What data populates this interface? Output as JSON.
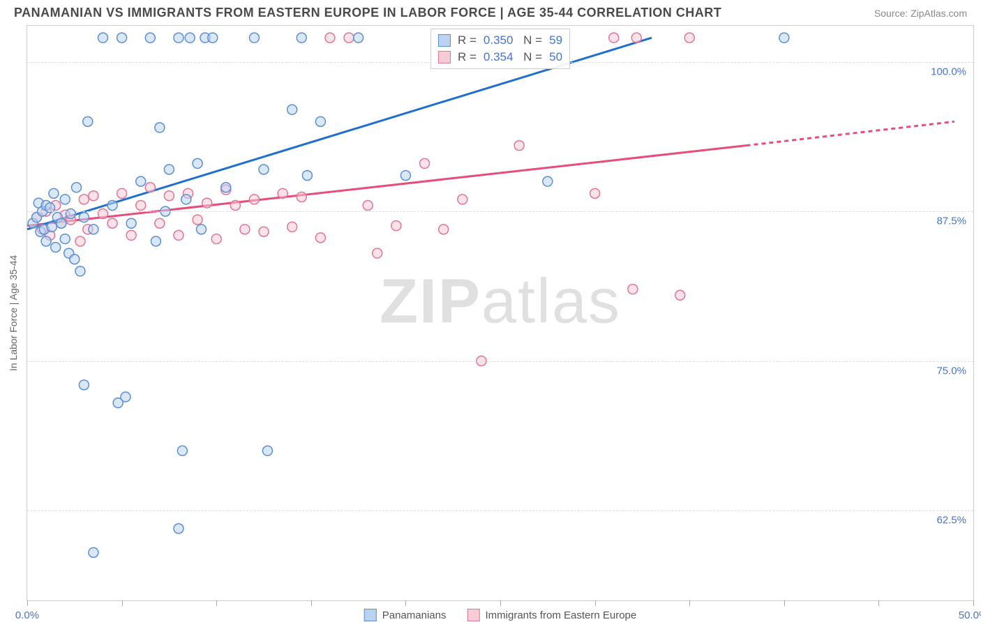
{
  "header": {
    "title": "PANAMANIAN VS IMMIGRANTS FROM EASTERN EUROPE IN LABOR FORCE | AGE 35-44 CORRELATION CHART",
    "source": "Source: ZipAtlas.com"
  },
  "axes": {
    "y_label": "In Labor Force | Age 35-44",
    "xlim": [
      0,
      50
    ],
    "ylim": [
      55,
      103
    ],
    "x_ticks": [
      0,
      5,
      10,
      15,
      20,
      25,
      30,
      35,
      40,
      45,
      50
    ],
    "x_tick_labels": {
      "0": "0.0%",
      "50": "50.0%"
    },
    "y_ticks": [
      62.5,
      75.0,
      87.5,
      100.0
    ],
    "y_tick_labels": [
      "62.5%",
      "75.0%",
      "87.5%",
      "100.0%"
    ],
    "grid_color": "#dddddd",
    "tick_label_color": "#4a74c9"
  },
  "series": {
    "a": {
      "label": "Panamanians",
      "color_fill": "#bcd3f0",
      "color_stroke": "#5a8fd6",
      "line_color": "#1f6fd1",
      "trend": {
        "x1": 0,
        "y1": 86.0,
        "x2": 33,
        "y2": 102.0
      },
      "stats": {
        "R": "0.350",
        "N": "59"
      },
      "points": [
        [
          0.3,
          86.5
        ],
        [
          0.5,
          87.0
        ],
        [
          0.6,
          88.2
        ],
        [
          0.7,
          85.8
        ],
        [
          0.8,
          87.5
        ],
        [
          0.9,
          86.0
        ],
        [
          1.0,
          88.0
        ],
        [
          1.0,
          85.0
        ],
        [
          1.2,
          87.8
        ],
        [
          1.3,
          86.2
        ],
        [
          1.4,
          89.0
        ],
        [
          1.5,
          84.5
        ],
        [
          1.6,
          87.0
        ],
        [
          1.8,
          86.5
        ],
        [
          2.0,
          85.2
        ],
        [
          2.0,
          88.5
        ],
        [
          2.2,
          84.0
        ],
        [
          2.3,
          87.3
        ],
        [
          2.5,
          83.5
        ],
        [
          2.6,
          89.5
        ],
        [
          2.8,
          82.5
        ],
        [
          3.0,
          73.0
        ],
        [
          3.0,
          87.0
        ],
        [
          3.2,
          95.0
        ],
        [
          3.5,
          86.0
        ],
        [
          3.5,
          59.0
        ],
        [
          4.0,
          102.0
        ],
        [
          4.5,
          88.0
        ],
        [
          4.8,
          71.5
        ],
        [
          5.0,
          102.0
        ],
        [
          5.2,
          72.0
        ],
        [
          5.5,
          86.5
        ],
        [
          6.0,
          90.0
        ],
        [
          6.5,
          102.0
        ],
        [
          6.8,
          85.0
        ],
        [
          7.0,
          94.5
        ],
        [
          7.3,
          87.5
        ],
        [
          7.5,
          91.0
        ],
        [
          8.0,
          61.0
        ],
        [
          8.0,
          102.0
        ],
        [
          8.2,
          67.5
        ],
        [
          8.4,
          88.5
        ],
        [
          8.6,
          102.0
        ],
        [
          9.0,
          91.5
        ],
        [
          9.2,
          86.0
        ],
        [
          9.4,
          102.0
        ],
        [
          9.8,
          102.0
        ],
        [
          10.5,
          89.5
        ],
        [
          12.0,
          102.0
        ],
        [
          12.5,
          91.0
        ],
        [
          12.7,
          67.5
        ],
        [
          14.0,
          96.0
        ],
        [
          14.5,
          102.0
        ],
        [
          14.8,
          90.5
        ],
        [
          15.5,
          95.0
        ],
        [
          17.5,
          102.0
        ],
        [
          20.0,
          90.5
        ],
        [
          27.5,
          90.0
        ],
        [
          40.0,
          102.0
        ]
      ]
    },
    "b": {
      "label": "Immigrants from Eastern Europe",
      "color_fill": "#f6ccd6",
      "color_stroke": "#e27497",
      "line_color": "#e84c7a",
      "trend": {
        "x1": 0,
        "y1": 86.3,
        "x2": 38,
        "y2": 93.0
      },
      "trend_dash_ext": {
        "x1": 38,
        "y1": 93.0,
        "x2": 49,
        "y2": 95.0
      },
      "stats": {
        "R": "0.354",
        "N": "50"
      },
      "points": [
        [
          0.5,
          87.0
        ],
        [
          0.8,
          86.0
        ],
        [
          1.0,
          87.5
        ],
        [
          1.2,
          85.5
        ],
        [
          1.5,
          88.0
        ],
        [
          1.8,
          86.5
        ],
        [
          2.0,
          87.2
        ],
        [
          2.3,
          86.8
        ],
        [
          2.8,
          85.0
        ],
        [
          3.0,
          88.5
        ],
        [
          3.2,
          86.0
        ],
        [
          3.5,
          88.8
        ],
        [
          4.0,
          87.3
        ],
        [
          4.5,
          86.5
        ],
        [
          5.0,
          89.0
        ],
        [
          5.5,
          85.5
        ],
        [
          6.0,
          88.0
        ],
        [
          6.5,
          89.5
        ],
        [
          7.0,
          86.5
        ],
        [
          7.5,
          88.8
        ],
        [
          8.0,
          85.5
        ],
        [
          8.5,
          89.0
        ],
        [
          9.0,
          86.8
        ],
        [
          9.5,
          88.2
        ],
        [
          10.0,
          85.2
        ],
        [
          10.5,
          89.3
        ],
        [
          11.0,
          88.0
        ],
        [
          11.5,
          86.0
        ],
        [
          12.0,
          88.5
        ],
        [
          12.5,
          85.8
        ],
        [
          13.5,
          89.0
        ],
        [
          14.0,
          86.2
        ],
        [
          14.5,
          88.7
        ],
        [
          15.5,
          85.3
        ],
        [
          16.0,
          102.0
        ],
        [
          17.0,
          102.0
        ],
        [
          18.0,
          88.0
        ],
        [
          18.5,
          84.0
        ],
        [
          19.5,
          86.3
        ],
        [
          21.0,
          91.5
        ],
        [
          22.0,
          86.0
        ],
        [
          23.0,
          88.5
        ],
        [
          24.0,
          75.0
        ],
        [
          26.0,
          93.0
        ],
        [
          30.0,
          89.0
        ],
        [
          31.0,
          102.0
        ],
        [
          32.0,
          81.0
        ],
        [
          32.2,
          102.0
        ],
        [
          34.5,
          80.5
        ],
        [
          35.0,
          102.0
        ]
      ]
    }
  },
  "marker": {
    "radius": 7,
    "stroke_width": 1.5,
    "fill_opacity": 0.55
  },
  "legend": {
    "series": [
      "a",
      "b"
    ]
  },
  "watermark": {
    "prefix": "ZIP",
    "suffix": "atlas"
  },
  "plot": {
    "background": "#ffffff",
    "border_color": "#cccccc"
  }
}
